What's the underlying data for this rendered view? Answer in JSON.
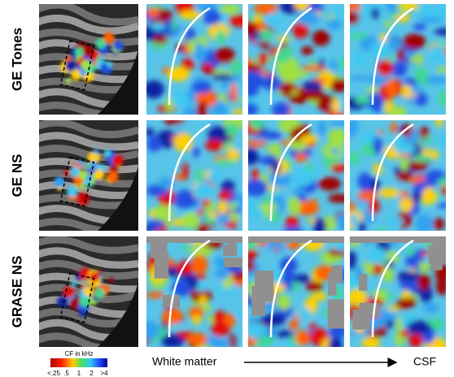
{
  "rows": [
    {
      "label": "GE Tones"
    },
    {
      "label": "GE NS"
    },
    {
      "label": "GRASE NS"
    }
  ],
  "colorbar": {
    "title": "CF in kHz",
    "ticks": [
      "<.25",
      ".5",
      "1",
      "2",
      ">4"
    ]
  },
  "axis": {
    "start": "White matter",
    "end": "CSF"
  }
}
